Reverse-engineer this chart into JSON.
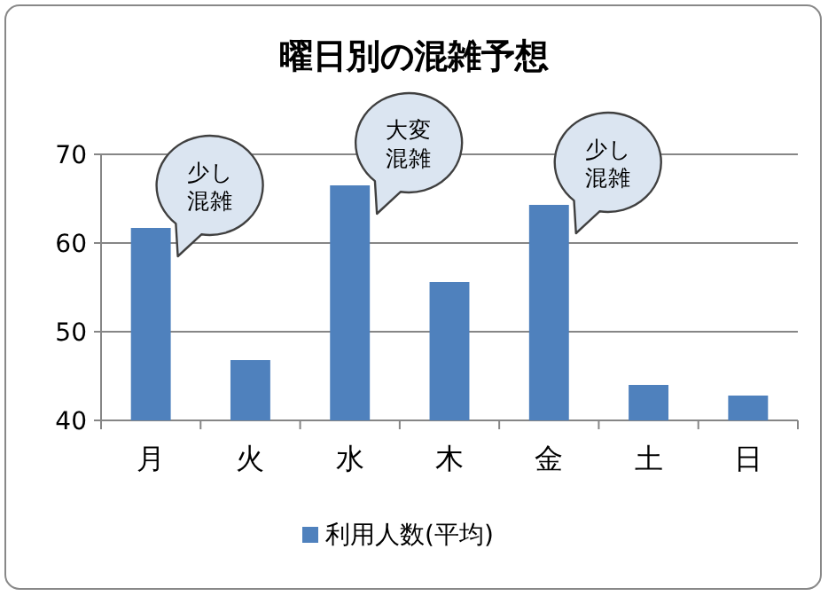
{
  "chart_data": {
    "type": "bar",
    "title": "曜日別の混雑予想",
    "categories": [
      "月",
      "火",
      "水",
      "木",
      "金",
      "土",
      "日"
    ],
    "series": [
      {
        "name": "利用人数(平均)",
        "color": "#4f81bd",
        "values": [
          61.7,
          46.8,
          66.5,
          55.6,
          64.3,
          44.0,
          42.8
        ]
      }
    ],
    "ylim": [
      40,
      70
    ],
    "yticks": [
      40,
      50,
      60,
      70
    ],
    "grid": "y",
    "legend": "bottom",
    "annotations": [
      {
        "text": "少し混雑",
        "x": "月",
        "y": 61.7
      },
      {
        "text": "大変混雑",
        "x": "水",
        "y": 66.5
      },
      {
        "text": "少し混雑",
        "x": "金",
        "y": 64.3
      }
    ]
  }
}
